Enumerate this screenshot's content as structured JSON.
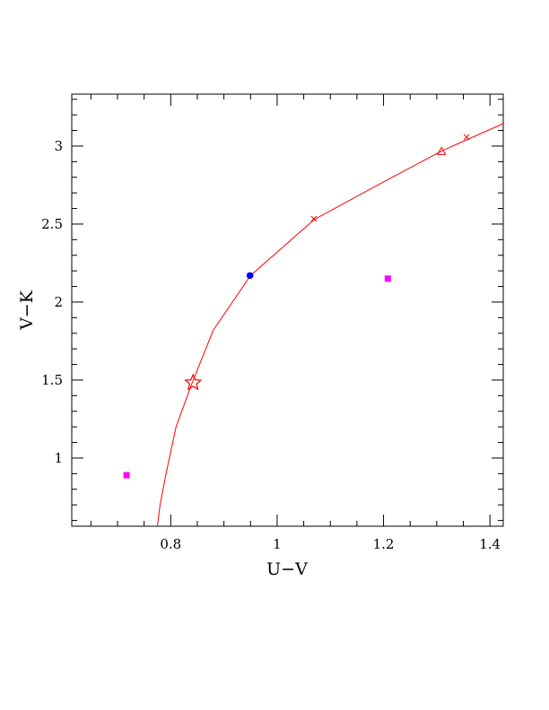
{
  "chart_data": {
    "type": "scatter",
    "x_label": "U−V",
    "y_label": "V−K",
    "xlim": [
      0.614,
      1.425
    ],
    "ylim": [
      0.563,
      3.333
    ],
    "xticks": [
      0.8,
      1,
      1.2,
      1.4
    ],
    "yticks": [
      1,
      1.5,
      2,
      2.5,
      3
    ],
    "xminorticks": [
      0.65,
      0.7,
      0.75,
      0.85,
      0.9,
      0.95,
      1.05,
      1.1,
      1.15,
      1.25,
      1.3,
      1.35
    ],
    "yminorticks": [
      0.6,
      0.7,
      0.8,
      0.9,
      1.1,
      1.2,
      1.3,
      1.4,
      1.6,
      1.7,
      1.8,
      1.9,
      2.1,
      2.2,
      2.3,
      2.4,
      2.6,
      2.7,
      2.8,
      2.9,
      3.1,
      3.2,
      3.3
    ],
    "curve": {
      "color": "#ff0000",
      "x": [
        0.775,
        0.78,
        0.79,
        0.81,
        0.84,
        0.88,
        0.95,
        1.07,
        1.2,
        1.31,
        1.425
      ],
      "values": [
        0.563,
        0.7,
        0.88,
        1.2,
        1.48,
        1.82,
        2.17,
        2.53,
        2.77,
        2.97,
        3.144
      ]
    },
    "series": [
      {
        "marker": "square",
        "color": "#ff00ff",
        "x": [
          0.717,
          1.208
        ],
        "values": [
          0.89,
          2.15
        ]
      },
      {
        "marker": "circle",
        "color": "#0000ff",
        "x": [
          0.949
        ],
        "values": [
          2.17
        ]
      },
      {
        "marker": "star",
        "color": "#ff0000",
        "x": [
          0.842
        ],
        "values": [
          1.483
        ]
      },
      {
        "marker": "cross",
        "color": "#ff0000",
        "x": [
          1.069,
          1.356
        ],
        "values": [
          2.534,
          3.057
        ]
      },
      {
        "marker": "triangle",
        "color": "#ff0000",
        "x": [
          1.309
        ],
        "values": [
          2.966
        ]
      }
    ]
  }
}
